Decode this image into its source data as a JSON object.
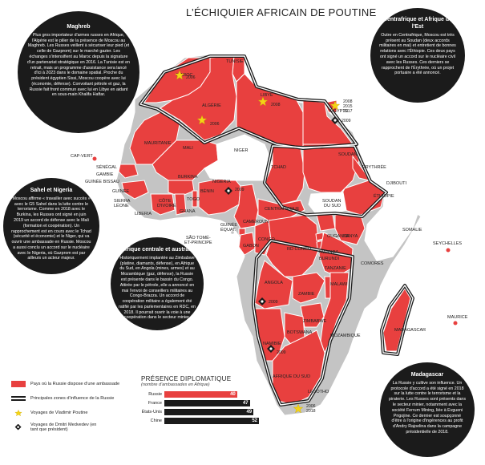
{
  "title": "L’ÉCHIQUIER AFRICAIN DE POUTINE",
  "colors": {
    "red": "#e8403f",
    "dark": "#1b1b1b",
    "grey": "#bdbdbd",
    "star": "#f4d416"
  },
  "labels": {
    "maroc": "MAROC",
    "tunisie": "TUNISIE",
    "algerie": "ALGÉRIE",
    "libye": "LIBYE",
    "egypte": "ÉGYPTE",
    "mauritanie": "MAURITANIE",
    "mali": "MALI",
    "niger": "NIGER",
    "tchad": "TCHAD",
    "soudan": "SOUDAN",
    "soudan_sud": "SOUDAN\nDU SUD",
    "erythree": "ÉRYTHRÉE",
    "djibouti": "DJIBOUTI",
    "ethiopie": "ÉTHIOPIE",
    "somalie": "SOMALIE",
    "senegal": "SÉNÉGAL",
    "gambie": "GAMBIE",
    "guinee_bissau": "GUINÉE BISSAU",
    "guinee": "GUINÉE",
    "sierra_leone": "SIERRA\nLÉONE",
    "liberia": "LIBERIA",
    "cote_ivoire": "CÔTE\nD'IVOIRE",
    "burkina": "BURKINA",
    "ghana": "GHANA",
    "togo": "TOGO",
    "benin": "BÉNIN",
    "nigeria": "NIGERIA",
    "cameroun": "CAMEROUN",
    "centrafrique": "CENTRAFRIQUE",
    "guinee_equat": "GUINÉE\nÉQUAT.",
    "gabon": "GABON",
    "congo": "CONGO",
    "rdc": "RD CONGO",
    "ouganda": "OUGANDA",
    "kenya": "KENYA",
    "rwanda": "RWANDA",
    "burundi": "BURUNDI",
    "tanzanie": "TANZANIE",
    "angola": "ANGOLA",
    "zambie": "ZAMBIE",
    "malawi": "MALAWI",
    "mozambique": "MOZAMBIQUE",
    "zimbabwe": "ZIMBABWE",
    "namibie": "NAMIBIE",
    "botswana": "BOTSWANA",
    "afrique_sud": "AFRIQUE DU SUD",
    "lesotho": "LESOTHO",
    "madagascar": "MADAGASCAR",
    "maurice": "MAURICE",
    "comores": "COMORES",
    "seychelles": "SEYCHELLES",
    "cap_vert": "CAP-VERT",
    "sao_tome": "SÃO TOMÉ-\nET-PRINCIPE"
  },
  "visits": {
    "maroc": "2006",
    "algerie": "2006",
    "libye": "2008",
    "egypte": "2008\n2015\n2017",
    "egypte_medvedev": "2009",
    "nigeria": "2009",
    "angola": "2009",
    "namibie": "2009",
    "afrique_sud": "2006\n2018"
  },
  "bubbles": {
    "maghreb": {
      "title": "Maghreb",
      "text": "Plus gros importateur d'armes russes en Afrique, l'Algérie est le pilier de la présence de Moscou au Maghreb. Les Russes veillent à sécuriser leur pied (et celle de Gazprom) sur le marché gazier. Les échanges s'intensifient au Maroc depuis la signature d'un partenariat stratégique en 2016. La Tunisie est en retrait, mais un programme d'assistance sera lancé d'ici à 2023 dans le domaine spatial. Proche du président égyptien Sissi, Moscou coopère avec lui (économie, défense). Convoitant pétrole et gaz, la Russie fait front commun avec lui en Libye en aidant en sous-main Khalifa Haftar."
    },
    "centrafrique": {
      "title": "Centrafrique et Afrique de l'Est",
      "text": "Outre en Centrafrique, Moscou est très présent au Soudan (deux accords militaires en mai) et entretient de bonnes relations avec l'Éthiopie. Ces deux pays ont signé un accord sur le nucléaire civil avec les Russes. Ces derniers se rapprochent de l'Érythrée, où un projet portuaire a été annoncé."
    },
    "sahel": {
      "title": "Sahel et Nigeria",
      "text": "Moscou affirme « travailler avec succès » avec le G5 Sahel dans la lutte contre le terrorisme. Comme en 2018 avec le Burkina, les Russes ont signé en juin 2019 un accord de défense avec le Mali (formation et coopération). Un rapprochement est en cours avec le Tchad (sécurité et économie) et le Niger, qui va ouvrir une ambassade en Russie. Moscou a aussi conclu un accord sur le nucléaire avec le Nigeria, où Gazprom est par ailleurs un acteur majeur."
    },
    "australe": {
      "title": "Afrique centrale et australe",
      "text": "Historiquement implantée au Zimbabwe (platine, diamants, défense), en Afrique du Sud, en Angola (mines, armes) et au Mozambique (gaz, défense), la Russie est présente dans le bassin du Congo. Attirée par le pétrole, elle a annoncé en mai l'envoi de conseillers militaires au Congo-Brazza. Un accord de coopération militaire a également été ratifié par les parlementaires en RDC, en 2018. Il pourrait ouvrir la voie à une coopération dans le secteur minier."
    },
    "madagascar": {
      "title": "Madagascar",
      "text": "La Russie y cultive son influence. Un protocole d'accord a été signé en 2018 sur la lutte contre le terrorisme et la piraterie. Les Russes sont présents dans le secteur minier, notamment avec la société Ferrum Mining, liée à Evgueni Prigojine. Ce dernier est soupçonné d'être à l'origine d'ingérences au profit d'Andry Rajoelina dans la campagne présidentielle de 2018."
    }
  },
  "legend": [
    {
      "key": "ambassade",
      "label": "Pays où la Russie dispose d'une ambassade"
    },
    {
      "key": "influence",
      "label": "Principales zones d'influence de la Russie"
    },
    {
      "key": "poutine",
      "label": "Voyages de Vladimir Poutine"
    },
    {
      "key": "medvedev",
      "label": "Voyages de Dmitri Medvedev (en tant que président)"
    }
  ],
  "chart_data": {
    "type": "bar",
    "title": "PRÉSENCE DIPLOMATIQUE",
    "subtitle": "(nombre d'ambassades en Afrique)",
    "categories": [
      "Russie",
      "France",
      "États-Unis",
      "Chine"
    ],
    "values": [
      40,
      47,
      49,
      52
    ],
    "xlim": [
      0,
      52
    ],
    "colors": [
      "#e8403f",
      "#1b1b1b",
      "#1b1b1b",
      "#1b1b1b"
    ]
  }
}
